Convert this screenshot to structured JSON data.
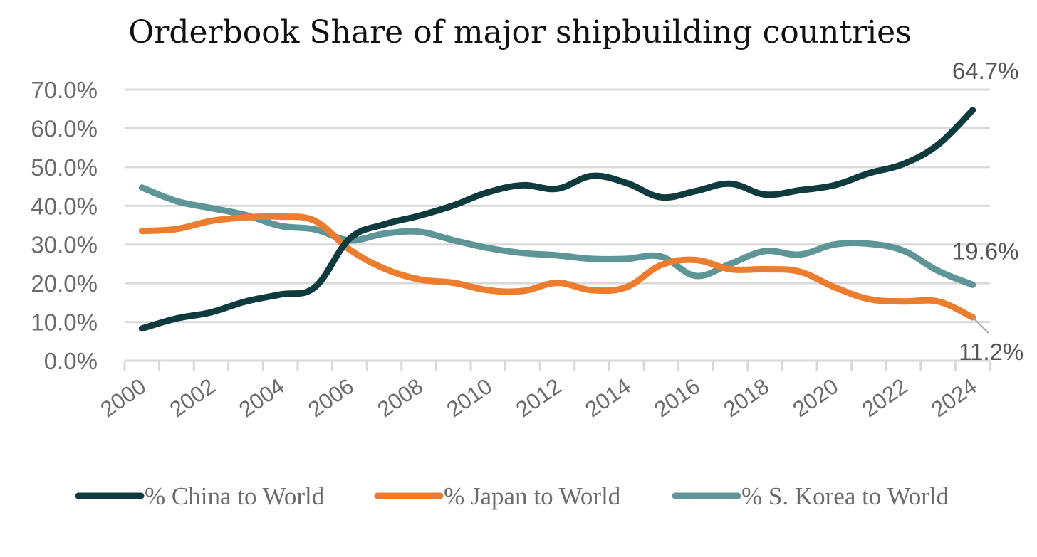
{
  "chart_data": {
    "type": "line",
    "title": "Orderbook Share of major shipbuilding countries",
    "xlabel": "",
    "ylabel": "",
    "ylim": [
      0,
      70
    ],
    "y_ticks": [
      "0.0%",
      "10.0%",
      "20.0%",
      "30.0%",
      "40.0%",
      "50.0%",
      "60.0%",
      "70.0%"
    ],
    "y_tick_values": [
      0,
      10,
      20,
      30,
      40,
      50,
      60,
      70
    ],
    "x": [
      2000,
      2001,
      2002,
      2003,
      2004,
      2005,
      2006,
      2007,
      2008,
      2009,
      2010,
      2011,
      2012,
      2013,
      2014,
      2015,
      2016,
      2017,
      2018,
      2019,
      2020,
      2021,
      2022,
      2023,
      2024
    ],
    "x_tick_labels": [
      "2000",
      "2002",
      "2004",
      "2006",
      "2008",
      "2010",
      "2012",
      "2014",
      "2016",
      "2018",
      "2020",
      "2022",
      "2024"
    ],
    "grid": true,
    "legend_position": "bottom",
    "series": [
      {
        "name": "% China to World",
        "color": "#0f3b3e",
        "values": [
          8.3,
          10.9,
          12.5,
          15.3,
          17.1,
          19.0,
          31.5,
          35.2,
          37.4,
          40.1,
          43.5,
          45.3,
          44.4,
          47.7,
          45.9,
          42.2,
          43.8,
          45.7,
          42.9,
          44.0,
          45.3,
          48.4,
          50.8,
          55.8,
          64.7
        ]
      },
      {
        "name": "% Japan to World",
        "color": "#ec7d2e",
        "values": [
          33.5,
          34.0,
          36.1,
          37.0,
          37.2,
          36.1,
          28.7,
          23.8,
          21.0,
          20.1,
          18.2,
          18.0,
          20.1,
          18.2,
          19.0,
          24.7,
          26.0,
          23.6,
          23.6,
          23.0,
          19.0,
          15.9,
          15.3,
          15.3,
          11.2
        ]
      },
      {
        "name": "% S. Korea to World",
        "color": "#5e9597",
        "values": [
          44.7,
          41.2,
          39.4,
          37.6,
          34.8,
          33.9,
          31.1,
          32.8,
          33.3,
          31.1,
          29.1,
          27.8,
          27.2,
          26.3,
          26.3,
          26.9,
          21.9,
          25.0,
          28.3,
          27.4,
          30.0,
          30.2,
          28.4,
          23.2,
          19.6
        ]
      }
    ],
    "annotations": [
      {
        "series": "% China to World",
        "x": 2024,
        "label": "64.7%"
      },
      {
        "series": "% S. Korea to World",
        "x": 2024,
        "label": "19.6%"
      },
      {
        "series": "% Japan to World",
        "x": 2024,
        "label": "11.2%"
      }
    ]
  }
}
